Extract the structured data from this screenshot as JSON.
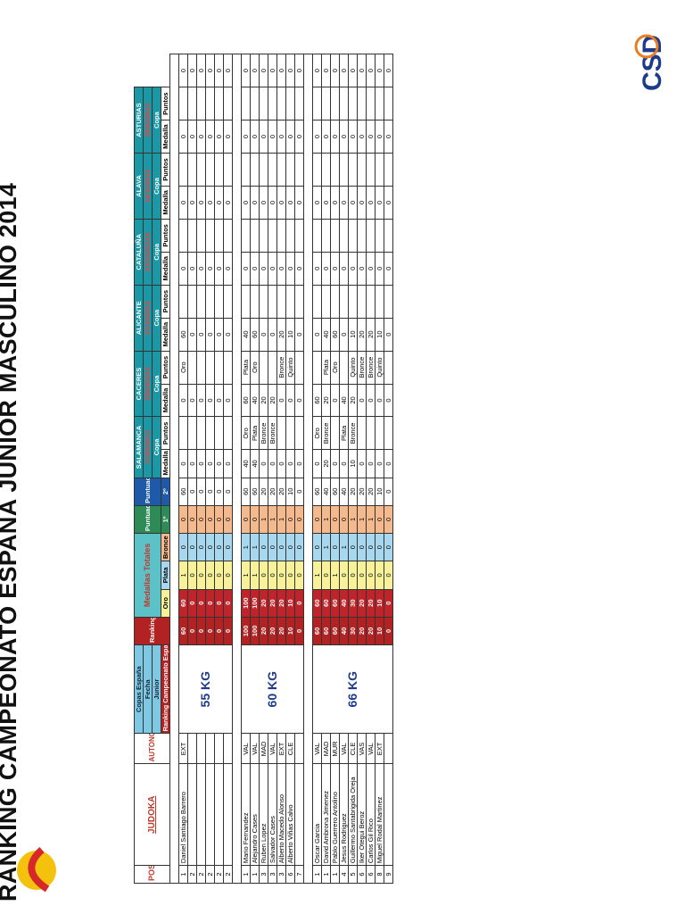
{
  "title": "RANKING CAMPEONATO ESPAÑA JUNIOR MASCULINO 2014",
  "header": {
    "posicion": "POSICION",
    "judoka": "JUDOKA",
    "autonomia": "AUTONOMIA",
    "copas_espana": "Copas España",
    "fecha": "Fecha",
    "junior": "Junior",
    "ranking_campeonato": "Ranking Campeonato España",
    "ranking_copas": "Ranking Copas España",
    "medallas_totales": "Medallas Totales",
    "oro": "Oro",
    "plata": "Plata",
    "bronce": "Bronce",
    "puntuacion": "Puntuación",
    "primero": "1º",
    "segundo": "2º",
    "medalla": "Medalla",
    "puntos": "Puntos",
    "events": [
      {
        "name": "SALAMANCA",
        "date": "17/03/2013",
        "type": "Copa"
      },
      {
        "name": "CACERES",
        "date": "20/04/2013",
        "type": "Copa"
      },
      {
        "name": "ALICANTE",
        "date": "07/10/2013",
        "type": "Copa"
      },
      {
        "name": "CATALUÑA",
        "date": "XX/XX/XXXX",
        "type": "Copa"
      },
      {
        "name": "ALAVA",
        "date": "16/11/2013",
        "type": "Copa"
      },
      {
        "name": "ASTURIAS",
        "date": "05/02/2014",
        "type": "Copa"
      }
    ]
  },
  "categories": [
    {
      "label": "55 KG",
      "rows": [
        {
          "pos": "1",
          "name": "Daniel Santiago Barrero",
          "aut": "EXT",
          "rk": "60",
          "rc": "60",
          "oro": "1",
          "plata": "0",
          "bronce": "0",
          "p1": "60",
          "p2": "0",
          "ev": [
            [
              "",
              "0"
            ],
            [
              "Oro",
              "60"
            ],
            [
              "",
              "0"
            ],
            [
              "",
              "0"
            ],
            [
              "",
              "0"
            ],
            [
              "",
              "0"
            ]
          ]
        },
        {
          "pos": "2",
          "name": "",
          "aut": "",
          "rk": "0",
          "rc": "0",
          "oro": "0",
          "plata": "0",
          "bronce": "0",
          "p1": "0",
          "p2": "0",
          "ev": [
            [
              "",
              "0"
            ],
            [
              "",
              "0"
            ],
            [
              "",
              "0"
            ],
            [
              "",
              "0"
            ],
            [
              "",
              "0"
            ],
            [
              "",
              "0"
            ]
          ]
        },
        {
          "pos": "2",
          "name": "",
          "aut": "",
          "rk": "0",
          "rc": "0",
          "oro": "0",
          "plata": "0",
          "bronce": "0",
          "p1": "0",
          "p2": "0",
          "ev": [
            [
              "",
              "0"
            ],
            [
              "",
              "0"
            ],
            [
              "",
              "0"
            ],
            [
              "",
              "0"
            ],
            [
              "",
              "0"
            ],
            [
              "",
              "0"
            ]
          ]
        },
        {
          "pos": "2",
          "name": "",
          "aut": "",
          "rk": "0",
          "rc": "0",
          "oro": "0",
          "plata": "0",
          "bronce": "0",
          "p1": "0",
          "p2": "0",
          "ev": [
            [
              "",
              "0"
            ],
            [
              "",
              "0"
            ],
            [
              "",
              "0"
            ],
            [
              "",
              "0"
            ],
            [
              "",
              "0"
            ],
            [
              "",
              "0"
            ]
          ]
        },
        {
          "pos": "2",
          "name": "",
          "aut": "",
          "rk": "0",
          "rc": "0",
          "oro": "0",
          "plata": "0",
          "bronce": "0",
          "p1": "0",
          "p2": "0",
          "ev": [
            [
              "",
              "0"
            ],
            [
              "",
              "0"
            ],
            [
              "",
              "0"
            ],
            [
              "",
              "0"
            ],
            [
              "",
              "0"
            ],
            [
              "",
              "0"
            ]
          ]
        },
        {
          "pos": "2",
          "name": "",
          "aut": "",
          "rk": "0",
          "rc": "0",
          "oro": "0",
          "plata": "0",
          "bronce": "0",
          "p1": "0",
          "p2": "0",
          "ev": [
            [
              "",
              "0"
            ],
            [
              "",
              "0"
            ],
            [
              "",
              "0"
            ],
            [
              "",
              "0"
            ],
            [
              "",
              "0"
            ],
            [
              "",
              "0"
            ]
          ]
        }
      ]
    },
    {
      "label": "60 KG",
      "rows": [
        {
          "pos": "1",
          "name": "Mario Fernandez",
          "aut": "VAL",
          "rk": "100",
          "rc": "100",
          "oro": "1",
          "plata": "1",
          "bronce": "0",
          "p1": "60",
          "p2": "40",
          "ev": [
            [
              "Oro",
              "60"
            ],
            [
              "Plata",
              "40"
            ],
            [
              "",
              "0"
            ],
            [
              "",
              "0"
            ],
            [
              "",
              "0"
            ],
            [
              "",
              "0"
            ]
          ]
        },
        {
          "pos": "1",
          "name": "Alejandro Cases",
          "aut": "VAL",
          "rk": "100",
          "rc": "100",
          "oro": "1",
          "plata": "1",
          "bronce": "0",
          "p1": "60",
          "p2": "40",
          "ev": [
            [
              "Plata",
              "40"
            ],
            [
              "Oro",
              "60"
            ],
            [
              "",
              "0"
            ],
            [
              "",
              "0"
            ],
            [
              "",
              "0"
            ],
            [
              "",
              "0"
            ]
          ]
        },
        {
          "pos": "3",
          "name": "Ruben Lopez",
          "aut": "MAD",
          "rk": "20",
          "rc": "20",
          "oro": "0",
          "plata": "0",
          "bronce": "1",
          "p1": "20",
          "p2": "0",
          "ev": [
            [
              "Bronce",
              "20"
            ],
            [
              "",
              "0"
            ],
            [
              "",
              "0"
            ],
            [
              "",
              "0"
            ],
            [
              "",
              "0"
            ],
            [
              "",
              "0"
            ]
          ]
        },
        {
          "pos": "3",
          "name": "Salvador Cases",
          "aut": "VAL",
          "rk": "20",
          "rc": "20",
          "oro": "0",
          "plata": "0",
          "bronce": "1",
          "p1": "20",
          "p2": "0",
          "ev": [
            [
              "Bronce",
              "20"
            ],
            [
              "",
              "0"
            ],
            [
              "",
              "0"
            ],
            [
              "",
              "0"
            ],
            [
              "",
              "0"
            ],
            [
              "",
              "0"
            ]
          ]
        },
        {
          "pos": "3",
          "name": "Alberto Macedo Alonso",
          "aut": "EXT",
          "rk": "20",
          "rc": "20",
          "oro": "0",
          "plata": "0",
          "bronce": "1",
          "p1": "20",
          "p2": "0",
          "ev": [
            [
              "",
              "0"
            ],
            [
              "Bronce",
              "20"
            ],
            [
              "",
              "0"
            ],
            [
              "",
              "0"
            ],
            [
              "",
              "0"
            ],
            [
              "",
              "0"
            ]
          ]
        },
        {
          "pos": "6",
          "name": "Alberto Viñas Calvo",
          "aut": "CLE",
          "rk": "10",
          "rc": "10",
          "oro": "0",
          "plata": "0",
          "bronce": "0",
          "p1": "10",
          "p2": "0",
          "ev": [
            [
              "",
              "0"
            ],
            [
              "Quinto",
              "10"
            ],
            [
              "",
              "0"
            ],
            [
              "",
              "0"
            ],
            [
              "",
              "0"
            ],
            [
              "",
              "0"
            ]
          ]
        },
        {
          "pos": "7",
          "name": "",
          "aut": "",
          "rk": "0",
          "rc": "0",
          "oro": "0",
          "plata": "0",
          "bronce": "0",
          "p1": "0",
          "p2": "0",
          "ev": [
            [
              "",
              "0"
            ],
            [
              "",
              "0"
            ],
            [
              "",
              "0"
            ],
            [
              "",
              "0"
            ],
            [
              "",
              "0"
            ],
            [
              "",
              "0"
            ]
          ]
        }
      ]
    },
    {
      "label": "66 KG",
      "rows": [
        {
          "pos": "1",
          "name": "Oscar Garcia",
          "aut": "VAL",
          "rk": "60",
          "rc": "60",
          "oro": "1",
          "plata": "0",
          "bronce": "0",
          "p1": "60",
          "p2": "0",
          "ev": [
            [
              "Oro",
              "60"
            ],
            [
              "",
              "0"
            ],
            [
              "",
              "0"
            ],
            [
              "",
              "0"
            ],
            [
              "",
              "0"
            ],
            [
              "",
              "0"
            ]
          ]
        },
        {
          "pos": "1",
          "name": "David Ambrona Jimenez",
          "aut": "MAD",
          "rk": "60",
          "rc": "60",
          "oro": "0",
          "plata": "1",
          "bronce": "1",
          "p1": "40",
          "p2": "20",
          "ev": [
            [
              "Bronce",
              "20"
            ],
            [
              "Plata",
              "40"
            ],
            [
              "",
              "0"
            ],
            [
              "",
              "0"
            ],
            [
              "",
              "0"
            ],
            [
              "",
              "0"
            ]
          ]
        },
        {
          "pos": "1",
          "name": "Pablo Guerrero Antolino",
          "aut": "MUR",
          "rk": "60",
          "rc": "60",
          "oro": "1",
          "plata": "0",
          "bronce": "0",
          "p1": "60",
          "p2": "0",
          "ev": [
            [
              "",
              "0"
            ],
            [
              "Oro",
              "60"
            ],
            [
              "",
              "0"
            ],
            [
              "",
              "0"
            ],
            [
              "",
              "0"
            ],
            [
              "",
              "0"
            ]
          ]
        },
        {
          "pos": "4",
          "name": "Jesus Rodriguez",
          "aut": "VAL",
          "rk": "40",
          "rc": "40",
          "oro": "0",
          "plata": "1",
          "bronce": "0",
          "p1": "40",
          "p2": "0",
          "ev": [
            [
              "Plata",
              "40"
            ],
            [
              "",
              "0"
            ],
            [
              "",
              "0"
            ],
            [
              "",
              "0"
            ],
            [
              "",
              "0"
            ],
            [
              "",
              "0"
            ]
          ]
        },
        {
          "pos": "5",
          "name": "Guillermo Santabrigida Oreja",
          "aut": "CLE",
          "rk": "30",
          "rc": "30",
          "oro": "0",
          "plata": "0",
          "bronce": "1",
          "p1": "20",
          "p2": "10",
          "ev": [
            [
              "Bronce",
              "20"
            ],
            [
              "Quinto",
              "10"
            ],
            [
              "",
              "0"
            ],
            [
              "",
              "0"
            ],
            [
              "",
              "0"
            ],
            [
              "",
              "0"
            ]
          ]
        },
        {
          "pos": "6",
          "name": "Iker Otegui Beroz",
          "aut": "VAS",
          "rk": "20",
          "rc": "20",
          "oro": "0",
          "plata": "0",
          "bronce": "1",
          "p1": "20",
          "p2": "0",
          "ev": [
            [
              "",
              "0"
            ],
            [
              "Bronce",
              "20"
            ],
            [
              "",
              "0"
            ],
            [
              "",
              "0"
            ],
            [
              "",
              "0"
            ],
            [
              "",
              "0"
            ]
          ]
        },
        {
          "pos": "6",
          "name": "Carlos Gil Rico",
          "aut": "VAL",
          "rk": "20",
          "rc": "20",
          "oro": "0",
          "plata": "0",
          "bronce": "1",
          "p1": "20",
          "p2": "0",
          "ev": [
            [
              "",
              "0"
            ],
            [
              "Bronce",
              "20"
            ],
            [
              "",
              "0"
            ],
            [
              "",
              "0"
            ],
            [
              "",
              "0"
            ],
            [
              "",
              "0"
            ]
          ]
        },
        {
          "pos": "8",
          "name": "Miguel Rodal Martinez",
          "aut": "EXT",
          "rk": "10",
          "rc": "10",
          "oro": "0",
          "plata": "0",
          "bronce": "0",
          "p1": "10",
          "p2": "0",
          "ev": [
            [
              "",
              "0"
            ],
            [
              "Quinto",
              "10"
            ],
            [
              "",
              "0"
            ],
            [
              "",
              "0"
            ],
            [
              "",
              "0"
            ],
            [
              "",
              "0"
            ]
          ]
        },
        {
          "pos": "9",
          "name": "",
          "aut": "",
          "rk": "0",
          "rc": "0",
          "oro": "0",
          "plata": "0",
          "bronce": "0",
          "p1": "0",
          "p2": "0",
          "ev": [
            [
              "",
              "0"
            ],
            [
              "",
              "0"
            ],
            [
              "",
              "0"
            ],
            [
              "",
              "0"
            ],
            [
              "",
              "0"
            ],
            [
              "",
              "0"
            ]
          ]
        }
      ]
    }
  ],
  "logos": {
    "csd": "csd-logo",
    "espana": "espana-logo"
  },
  "colors": {
    "accent_red": "#c0392b",
    "gold": "#f7f19a",
    "silver": "#a8d8f0",
    "bronze": "#f4b98c",
    "rank_red": "#b22222"
  }
}
